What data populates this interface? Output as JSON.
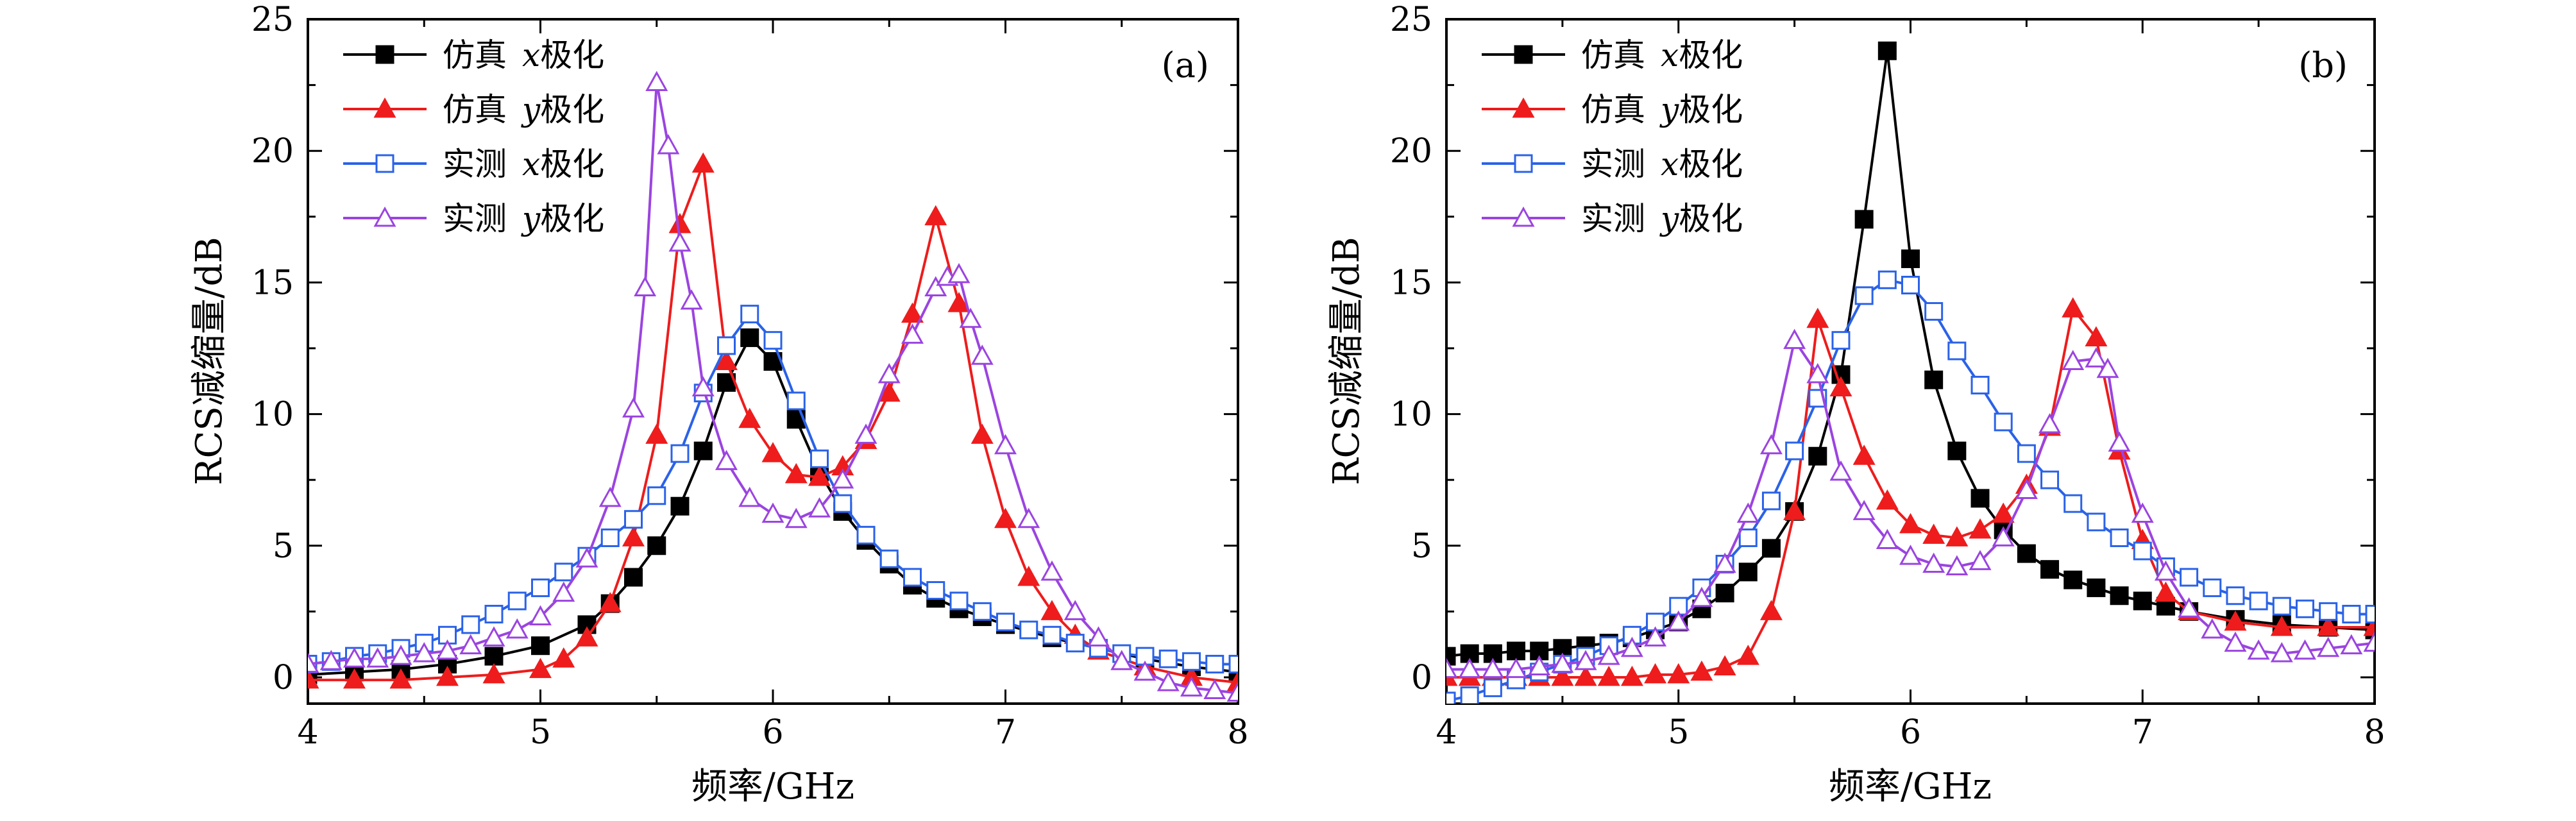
{
  "chart_data": [
    {
      "type": "line",
      "panel_label": "(a)",
      "xlabel": "频率/GHz",
      "ylabel": "RCS减缩量/dB",
      "xlim": [
        4,
        8
      ],
      "ylim": [
        -1,
        25
      ],
      "xticks": [
        "4",
        "5",
        "6",
        "7",
        "8"
      ],
      "yticks": [
        "0",
        "5",
        "10",
        "15",
        "20",
        "25"
      ],
      "legend_position": "top-left",
      "series": [
        {
          "name": "仿真 x极化",
          "name_prefix": "仿真",
          "name_var": "x",
          "name_suffix": "极化",
          "color": "#000000",
          "marker": "square-filled",
          "x": [
            4.0,
            4.2,
            4.4,
            4.6,
            4.8,
            5.0,
            5.2,
            5.3,
            5.4,
            5.5,
            5.6,
            5.7,
            5.8,
            5.9,
            6.0,
            6.1,
            6.2,
            6.3,
            6.4,
            6.5,
            6.6,
            6.7,
            6.8,
            6.9,
            7.0,
            7.2,
            7.4,
            7.6,
            7.8,
            8.0
          ],
          "y": [
            0.1,
            0.2,
            0.3,
            0.5,
            0.8,
            1.2,
            2.0,
            2.8,
            3.8,
            5.0,
            6.5,
            8.6,
            11.2,
            12.9,
            12.0,
            9.8,
            7.8,
            6.3,
            5.2,
            4.3,
            3.5,
            3.0,
            2.6,
            2.3,
            2.0,
            1.5,
            1.1,
            0.7,
            0.4,
            0.2
          ]
        },
        {
          "name": "仿真 y极化",
          "name_prefix": "仿真",
          "name_var": "y",
          "name_suffix": "极化",
          "color": "#ee1c1c",
          "marker": "triangle-filled",
          "x": [
            4.0,
            4.2,
            4.4,
            4.6,
            4.8,
            5.0,
            5.1,
            5.2,
            5.3,
            5.4,
            5.5,
            5.6,
            5.7,
            5.8,
            5.9,
            6.0,
            6.1,
            6.2,
            6.3,
            6.4,
            6.5,
            6.6,
            6.7,
            6.8,
            6.9,
            7.0,
            7.1,
            7.2,
            7.3,
            7.4,
            7.6,
            7.8,
            8.0
          ],
          "y": [
            -0.1,
            -0.1,
            -0.1,
            0.0,
            0.1,
            0.3,
            0.7,
            1.5,
            2.8,
            5.3,
            9.2,
            17.2,
            19.5,
            12.0,
            9.8,
            8.5,
            7.7,
            7.6,
            8.0,
            9.0,
            10.8,
            13.8,
            17.5,
            14.2,
            9.2,
            6.0,
            3.8,
            2.5,
            1.6,
            1.0,
            0.4,
            0.0,
            -0.2
          ]
        },
        {
          "name": "实测 x极化",
          "name_prefix": "实测",
          "name_var": "x",
          "name_suffix": "极化",
          "color": "#2a62e8",
          "marker": "square-open",
          "x": [
            4.0,
            4.1,
            4.2,
            4.3,
            4.4,
            4.5,
            4.6,
            4.7,
            4.8,
            4.9,
            5.0,
            5.1,
            5.2,
            5.3,
            5.4,
            5.5,
            5.6,
            5.7,
            5.8,
            5.9,
            6.0,
            6.1,
            6.2,
            6.3,
            6.4,
            6.5,
            6.6,
            6.7,
            6.8,
            6.9,
            7.0,
            7.1,
            7.2,
            7.3,
            7.4,
            7.5,
            7.6,
            7.7,
            7.8,
            7.9,
            8.0
          ],
          "y": [
            0.5,
            0.6,
            0.8,
            0.9,
            1.1,
            1.3,
            1.6,
            2.0,
            2.4,
            2.9,
            3.4,
            4.0,
            4.6,
            5.3,
            6.0,
            6.9,
            8.5,
            10.8,
            12.6,
            13.8,
            12.8,
            10.5,
            8.3,
            6.6,
            5.4,
            4.5,
            3.8,
            3.3,
            2.9,
            2.5,
            2.1,
            1.8,
            1.6,
            1.3,
            1.1,
            0.9,
            0.8,
            0.7,
            0.6,
            0.5,
            0.5
          ]
        },
        {
          "name": "实测 y极化",
          "name_prefix": "实测",
          "name_var": "y",
          "name_suffix": "极化",
          "color": "#9b44e0",
          "marker": "triangle-open",
          "x": [
            4.0,
            4.1,
            4.2,
            4.3,
            4.4,
            4.5,
            4.6,
            4.7,
            4.8,
            4.9,
            5.0,
            5.1,
            5.2,
            5.3,
            5.4,
            5.45,
            5.5,
            5.55,
            5.6,
            5.65,
            5.7,
            5.8,
            5.9,
            6.0,
            6.1,
            6.2,
            6.3,
            6.4,
            6.5,
            6.6,
            6.7,
            6.75,
            6.8,
            6.85,
            6.9,
            7.0,
            7.1,
            7.2,
            7.3,
            7.4,
            7.5,
            7.6,
            7.7,
            7.8,
            7.9,
            8.0
          ],
          "y": [
            0.5,
            0.6,
            0.7,
            0.7,
            0.8,
            0.9,
            1.0,
            1.2,
            1.5,
            1.8,
            2.3,
            3.2,
            4.5,
            6.8,
            10.2,
            14.8,
            22.6,
            20.2,
            16.5,
            14.3,
            11.0,
            8.2,
            6.8,
            6.2,
            6.0,
            6.4,
            7.5,
            9.2,
            11.5,
            13.0,
            14.8,
            15.2,
            15.3,
            13.6,
            12.2,
            8.8,
            6.0,
            4.0,
            2.5,
            1.5,
            0.6,
            0.2,
            -0.2,
            -0.4,
            -0.5,
            -0.6
          ]
        }
      ]
    },
    {
      "type": "line",
      "panel_label": "(b)",
      "xlabel": "频率/GHz",
      "ylabel": "RCS减缩量/dB",
      "xlim": [
        4,
        8
      ],
      "ylim": [
        -1,
        25
      ],
      "xticks": [
        "4",
        "5",
        "6",
        "7",
        "8"
      ],
      "yticks": [
        "0",
        "5",
        "10",
        "15",
        "20",
        "25"
      ],
      "legend_position": "top-left",
      "series": [
        {
          "name": "仿真 x极化",
          "name_prefix": "仿真",
          "name_var": "x",
          "name_suffix": "极化",
          "color": "#000000",
          "marker": "square-filled",
          "x": [
            4.0,
            4.1,
            4.2,
            4.3,
            4.4,
            4.5,
            4.6,
            4.7,
            4.8,
            4.9,
            5.0,
            5.1,
            5.2,
            5.3,
            5.4,
            5.5,
            5.6,
            5.7,
            5.8,
            5.9,
            6.0,
            6.1,
            6.2,
            6.3,
            6.4,
            6.5,
            6.6,
            6.7,
            6.8,
            6.9,
            7.0,
            7.1,
            7.2,
            7.4,
            7.6,
            7.8,
            8.0
          ],
          "y": [
            0.8,
            0.9,
            0.9,
            1.0,
            1.0,
            1.1,
            1.2,
            1.3,
            1.5,
            1.8,
            2.1,
            2.6,
            3.2,
            4.0,
            4.9,
            6.3,
            8.4,
            11.5,
            17.4,
            23.8,
            15.9,
            11.3,
            8.6,
            6.8,
            5.6,
            4.7,
            4.1,
            3.7,
            3.4,
            3.1,
            2.9,
            2.7,
            2.5,
            2.2,
            2.0,
            1.9,
            1.8
          ]
        },
        {
          "name": "仿真 y极化",
          "name_prefix": "仿真",
          "name_var": "y",
          "name_suffix": "极化",
          "color": "#ee1c1c",
          "marker": "triangle-filled",
          "x": [
            4.0,
            4.1,
            4.2,
            4.3,
            4.4,
            4.5,
            4.6,
            4.7,
            4.8,
            4.9,
            5.0,
            5.1,
            5.2,
            5.3,
            5.4,
            5.5,
            5.6,
            5.7,
            5.8,
            5.9,
            6.0,
            6.1,
            6.2,
            6.3,
            6.4,
            6.5,
            6.6,
            6.7,
            6.8,
            6.9,
            7.0,
            7.1,
            7.2,
            7.4,
            7.6,
            7.8,
            8.0
          ],
          "y": [
            0.0,
            0.0,
            0.0,
            0.0,
            0.0,
            0.0,
            0.0,
            0.0,
            0.0,
            0.1,
            0.1,
            0.2,
            0.4,
            0.8,
            2.5,
            6.3,
            13.6,
            11.0,
            8.4,
            6.7,
            5.8,
            5.4,
            5.3,
            5.6,
            6.2,
            7.3,
            9.5,
            14.0,
            12.9,
            8.6,
            5.2,
            3.2,
            2.5,
            2.1,
            1.9,
            1.9,
            1.9
          ]
        },
        {
          "name": "实测 x极化",
          "name_prefix": "实测",
          "name_var": "x",
          "name_suffix": "极化",
          "color": "#2a62e8",
          "marker": "square-open",
          "x": [
            4.0,
            4.1,
            4.2,
            4.3,
            4.4,
            4.5,
            4.6,
            4.7,
            4.8,
            4.9,
            5.0,
            5.1,
            5.2,
            5.3,
            5.4,
            5.5,
            5.6,
            5.7,
            5.8,
            5.9,
            6.0,
            6.1,
            6.2,
            6.3,
            6.4,
            6.5,
            6.6,
            6.7,
            6.8,
            6.9,
            7.0,
            7.1,
            7.2,
            7.3,
            7.4,
            7.5,
            7.6,
            7.7,
            7.8,
            7.9,
            8.0
          ],
          "y": [
            -0.9,
            -0.7,
            -0.4,
            -0.1,
            0.2,
            0.5,
            0.8,
            1.2,
            1.6,
            2.1,
            2.7,
            3.4,
            4.3,
            5.3,
            6.7,
            8.6,
            10.6,
            12.8,
            14.5,
            15.1,
            14.9,
            13.9,
            12.4,
            11.1,
            9.7,
            8.5,
            7.5,
            6.6,
            5.9,
            5.3,
            4.8,
            4.2,
            3.8,
            3.4,
            3.1,
            2.9,
            2.7,
            2.6,
            2.5,
            2.4,
            2.4
          ]
        },
        {
          "name": "实测 y极化",
          "name_prefix": "实测",
          "name_var": "y",
          "name_suffix": "极化",
          "color": "#9b44e0",
          "marker": "triangle-open",
          "x": [
            4.0,
            4.1,
            4.2,
            4.3,
            4.4,
            4.5,
            4.6,
            4.7,
            4.8,
            4.9,
            5.0,
            5.1,
            5.2,
            5.3,
            5.4,
            5.5,
            5.6,
            5.7,
            5.8,
            5.9,
            6.0,
            6.1,
            6.2,
            6.3,
            6.4,
            6.5,
            6.6,
            6.7,
            6.8,
            6.85,
            6.9,
            7.0,
            7.1,
            7.2,
            7.3,
            7.4,
            7.5,
            7.6,
            7.7,
            7.8,
            7.9,
            8.0
          ],
          "y": [
            0.3,
            0.3,
            0.3,
            0.3,
            0.4,
            0.5,
            0.6,
            0.8,
            1.1,
            1.5,
            2.1,
            3.0,
            4.3,
            6.2,
            8.8,
            12.8,
            11.5,
            7.8,
            6.3,
            5.2,
            4.6,
            4.3,
            4.2,
            4.4,
            5.3,
            7.1,
            9.6,
            12.0,
            12.1,
            11.7,
            8.9,
            6.2,
            4.0,
            2.6,
            1.8,
            1.3,
            1.0,
            0.9,
            1.0,
            1.1,
            1.2,
            1.3
          ]
        }
      ]
    }
  ]
}
